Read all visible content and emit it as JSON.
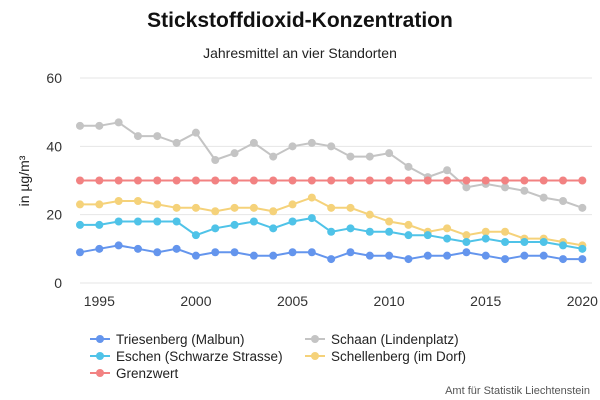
{
  "chart_data": {
    "type": "line",
    "title": "Stickstoffdioxid-Konzentration",
    "subtitle": "Jahresmittel an vier Standorten",
    "ylabel": "in µg/m³",
    "xlabel": "",
    "ylim": [
      0,
      60
    ],
    "xlim": [
      1994,
      2020.5
    ],
    "yticks": [
      0,
      20,
      40,
      60
    ],
    "xticks": [
      1995,
      2000,
      2005,
      2010,
      2015,
      2020
    ],
    "grid": "horizontal",
    "legend_position": "bottom",
    "source": "Amt für Statistik Liechtenstein",
    "x": [
      1994,
      1995,
      1996,
      1997,
      1998,
      1999,
      2000,
      2001,
      2002,
      2003,
      2004,
      2005,
      2006,
      2007,
      2008,
      2009,
      2010,
      2011,
      2012,
      2013,
      2014,
      2015,
      2016,
      2017,
      2018,
      2019,
      2020
    ],
    "series": [
      {
        "name": "Triesenberg (Malbun)",
        "color": "#6495ED",
        "values": [
          9,
          10,
          11,
          10,
          9,
          10,
          8,
          9,
          9,
          8,
          8,
          9,
          9,
          7,
          9,
          8,
          8,
          7,
          8,
          8,
          9,
          8,
          7,
          8,
          8,
          7,
          7
        ]
      },
      {
        "name": "Eschen (Schwarze Strasse)",
        "color": "#4FC3E8",
        "values": [
          17,
          17,
          18,
          18,
          18,
          18,
          14,
          16,
          17,
          18,
          16,
          18,
          19,
          15,
          16,
          15,
          15,
          14,
          14,
          13,
          12,
          13,
          12,
          12,
          12,
          11,
          10
        ]
      },
      {
        "name": "Grenzwert",
        "color": "#F28282",
        "values": [
          30,
          30,
          30,
          30,
          30,
          30,
          30,
          30,
          30,
          30,
          30,
          30,
          30,
          30,
          30,
          30,
          30,
          30,
          30,
          30,
          30,
          30,
          30,
          30,
          30,
          30,
          30
        ]
      },
      {
        "name": "Schaan (Lindenplatz)",
        "color": "#C4C4C4",
        "values": [
          46,
          46,
          47,
          43,
          43,
          41,
          44,
          36,
          38,
          41,
          37,
          40,
          41,
          40,
          37,
          37,
          38,
          34,
          31,
          33,
          28,
          29,
          28,
          27,
          25,
          24,
          22
        ]
      },
      {
        "name": "Schellenberg (im Dorf)",
        "color": "#F5D27A",
        "values": [
          23,
          23,
          24,
          24,
          23,
          22,
          22,
          21,
          22,
          22,
          21,
          23,
          25,
          22,
          22,
          20,
          18,
          17,
          15,
          16,
          14,
          15,
          15,
          13,
          13,
          12,
          11
        ]
      }
    ]
  }
}
